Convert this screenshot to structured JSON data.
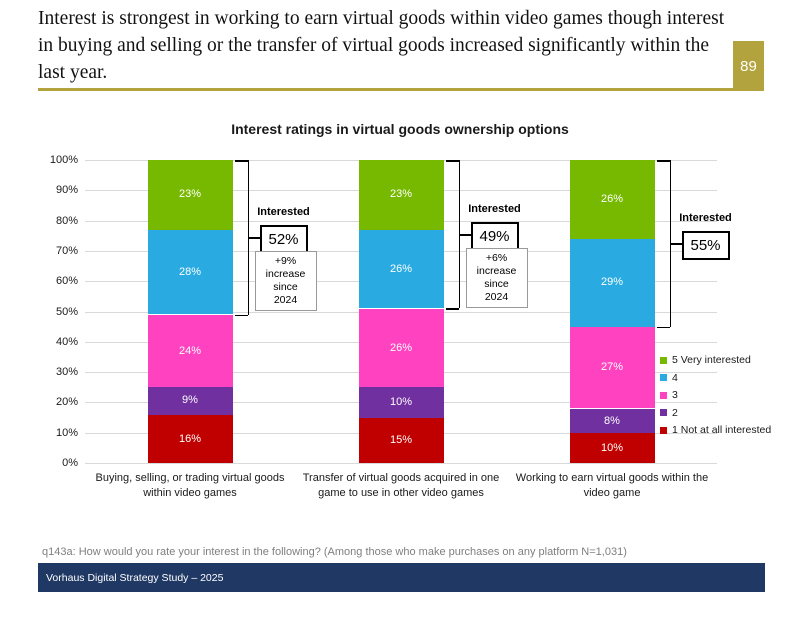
{
  "header": {
    "title": "Interest is strongest in working to earn virtual goods within video games though interest in buying and selling or the transfer of virtual goods increased significantly within the last year.",
    "page_number": "89"
  },
  "colors": {
    "accent_gold": "#B3A33F",
    "footer_navy": "#1F3864",
    "gridline_gray": "#D9D9D9"
  },
  "chart_data": {
    "type": "bar",
    "stacked": true,
    "title": "Interest ratings in virtual goods ownership options",
    "categories": [
      "Buying, selling, or trading virtual goods within video games",
      "Transfer of virtual goods acquired in one game to use in other video games",
      "Working to earn virtual goods within the video game"
    ],
    "series": [
      {
        "name": "1 Not at all interested",
        "color": "#C00000",
        "values": [
          16,
          15,
          10
        ]
      },
      {
        "name": "2",
        "color": "#7030A0",
        "values": [
          9,
          10,
          8
        ]
      },
      {
        "name": "3",
        "color": "#FF42C0",
        "values": [
          24,
          26,
          27
        ]
      },
      {
        "name": "4",
        "color": "#29ABE2",
        "values": [
          28,
          26,
          29
        ]
      },
      {
        "name": "5 Very interested",
        "color": "#76B900",
        "values": [
          23,
          23,
          26
        ]
      }
    ],
    "value_suffix": "%",
    "xlabel": "",
    "ylabel": "",
    "ylim": [
      0,
      100
    ],
    "ytick_step": 10,
    "ytick_suffix": "%",
    "grid": true,
    "legend_position": "right",
    "legend_order_top_to_bottom": [
      "5 Very interested",
      "4",
      "3",
      "2",
      "1 Not at all interested"
    ],
    "callouts": [
      {
        "label": "Interested",
        "value": "52%",
        "note_lines": [
          "+9%",
          "increase",
          "since",
          "2024"
        ],
        "bracket_top": 100,
        "bracket_bottom": 49
      },
      {
        "label": "Interested",
        "value": "49%",
        "note_lines": [
          "+6%",
          "increase",
          "since",
          "2024"
        ],
        "bracket_top": 100,
        "bracket_bottom": 51
      },
      {
        "label": "Interested",
        "value": "55%",
        "note_lines": [],
        "bracket_top": 100,
        "bracket_bottom": 45
      }
    ]
  },
  "footnote": "q143a: How would you rate your interest in the following? (Among those who make purchases on any platform N=1,031)",
  "footer": {
    "text": "Vorhaus Digital Strategy Study – 2025"
  }
}
